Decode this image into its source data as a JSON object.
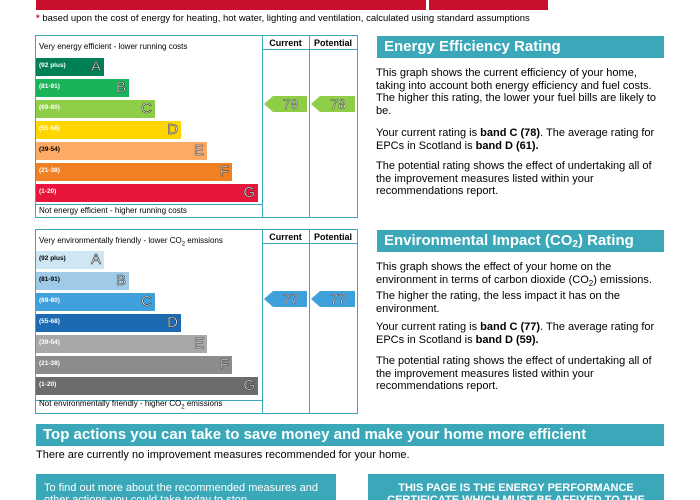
{
  "footnote": "based upon the cost of energy for heating, hot water, lighting and ventilation, calculated using standard assumptions",
  "footnote_mark": "*",
  "col_current": "Current",
  "col_potential": "Potential",
  "energy": {
    "top_label": "Very energy efficient - lower running costs",
    "bottom_label": "Not energy efficient - higher running costs",
    "bands": [
      {
        "range": "(92 plus)",
        "letter": "A",
        "color": "#008054"
      },
      {
        "range": "(81-91)",
        "letter": "B",
        "color": "#19b459"
      },
      {
        "range": "(69-80)",
        "letter": "C",
        "color": "#8dce46"
      },
      {
        "range": "(55-68)",
        "letter": "D",
        "color": "#ffd500"
      },
      {
        "range": "(39-54)",
        "letter": "E",
        "color": "#fcaa65"
      },
      {
        "range": "(21-38)",
        "letter": "F",
        "color": "#ef8023"
      },
      {
        "range": "(1-20)",
        "letter": "G",
        "color": "#e9153b"
      }
    ],
    "current": 78,
    "potential": 78,
    "arrow_color": "#8dce46",
    "title": "Energy Efficiency Rating",
    "p1": "This graph shows the current efficiency of your home, taking into account both energy efficiency and fuel costs. The higher this rating, the lower your fuel bills are likely to be.",
    "p2_pre": "Your current rating is ",
    "p2_b1": "band C (78)",
    "p2_mid": ". The average rating for EPCs in Scotland is ",
    "p2_b2": "band D (61).",
    "p3": "The potential rating shows the effect of undertaking all of the improvement measures listed within your recommendations report."
  },
  "environment": {
    "top_label_pre": "Very environmentally friendly - lower CO",
    "top_label_post": " emissions",
    "bottom_label_pre": "Not environmentally friendly - higher CO",
    "bottom_label_post": " emissions",
    "sub2": "2",
    "bands": [
      {
        "range": "(92 plus)",
        "letter": "A",
        "color": "#cfe6f5"
      },
      {
        "range": "(81-91)",
        "letter": "B",
        "color": "#9fcbe8"
      },
      {
        "range": "(69-80)",
        "letter": "C",
        "color": "#3fa0dc"
      },
      {
        "range": "(55-68)",
        "letter": "D",
        "color": "#1c6ab2"
      },
      {
        "range": "(39-54)",
        "letter": "E",
        "color": "#a8a8a8"
      },
      {
        "range": "(21-38)",
        "letter": "F",
        "color": "#8c8c8c"
      },
      {
        "range": "(1-20)",
        "letter": "G",
        "color": "#6c6c6c"
      }
    ],
    "current": 77,
    "potential": 77,
    "arrow_color": "#3fa0dc",
    "title_pre": "Environmental Impact (CO",
    "title_post": ") Rating",
    "p1_pre": "This graph shows the effect of your home on the environment in terms of carbon dioxide (CO",
    "p1_post": ") emissions. The higher the rating, the less impact it has on the environment.",
    "p2_pre": "Your current rating is ",
    "p2_b1": "band C (77)",
    "p2_mid": ". The average rating for EPCs in Scotland is ",
    "p2_b2": "band D (59).",
    "p3": "The potential rating shows the effect of undertaking all of the improvement measures listed within your recommendations report."
  },
  "actions": {
    "title": "Top actions you can take to save money and make your home more efficient",
    "text": "There are currently no improvement measures recommended for your home.",
    "box_left": "To find out more about the recommended measures and other actions you could take today to stop",
    "box_right": "THIS PAGE IS THE ENERGY PERFORMANCE CERTIFICATE WHICH MUST BE AFFIXED TO THE"
  }
}
